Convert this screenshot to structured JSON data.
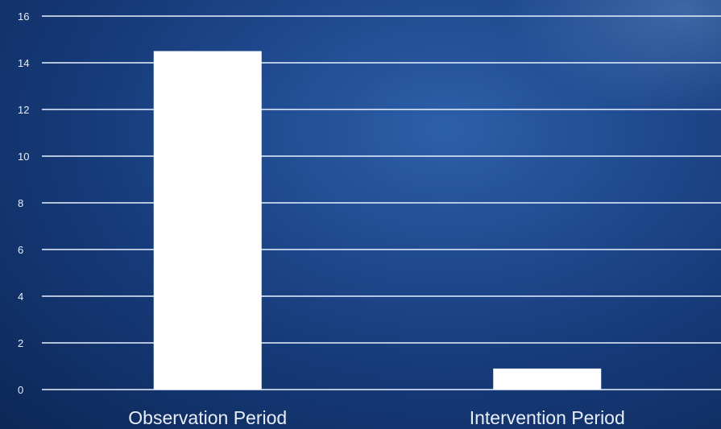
{
  "colors": {
    "background": "#1f4a8f",
    "bar": "#ffffff",
    "gridline": "#e1ebfa",
    "text": "#e8eef8"
  },
  "chart_data": {
    "type": "bar",
    "categories": [
      "Observation Period",
      "Intervention Period"
    ],
    "values": [
      14.5,
      0.9
    ],
    "title": "",
    "xlabel": "",
    "ylabel": "",
    "ylim": [
      0,
      16
    ],
    "yticks": [
      0,
      2,
      4,
      6,
      8,
      10,
      12,
      14,
      16
    ],
    "grid": true,
    "legend": "none"
  }
}
